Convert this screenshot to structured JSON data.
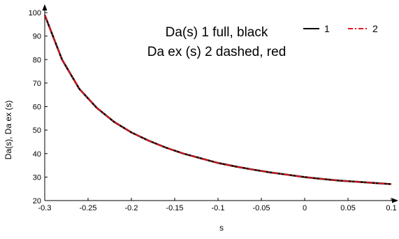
{
  "chart_data": {
    "type": "line",
    "title": "",
    "xlabel": "s",
    "ylabel": "Da(s),  Da ex (s)",
    "xlim": [
      -0.3,
      0.1
    ],
    "ylim": [
      20,
      100
    ],
    "x_ticks": [
      -0.3,
      -0.25,
      -0.2,
      -0.15,
      -0.1,
      -0.05,
      0,
      0.05,
      0.1
    ],
    "x_tick_labels": [
      "-0.3",
      "-0.25",
      "-0.2",
      "-0.15",
      "-0.1",
      "-0.05",
      "0",
      "0.05",
      "0.1"
    ],
    "y_ticks": [
      20,
      30,
      40,
      50,
      60,
      70,
      80,
      90,
      100
    ],
    "y_tick_labels": [
      "20",
      "30",
      "40",
      "50",
      "60",
      "70",
      "80",
      "90",
      "100"
    ],
    "grid": false,
    "legend_position": "top-right",
    "annotations": [
      "Da(s) 1 full, black",
      "Da ex (s) 2 dashed, red"
    ],
    "x": [
      -0.3,
      -0.28,
      -0.26,
      -0.24,
      -0.22,
      -0.2,
      -0.18,
      -0.16,
      -0.14,
      -0.12,
      -0.1,
      -0.08,
      -0.06,
      -0.04,
      -0.02,
      0,
      0.02,
      0.04,
      0.06,
      0.08,
      0.1
    ],
    "series": [
      {
        "name": "1",
        "color": "#000000",
        "style": "solid",
        "values": [
          99,
          80,
          67.5,
          59.5,
          53.5,
          49,
          45.5,
          42.5,
          40,
          38,
          36,
          34.5,
          33.2,
          32,
          31,
          30,
          29.2,
          28.5,
          28,
          27.5,
          27
        ]
      },
      {
        "name": "2",
        "color": "#e8141c",
        "style": "dash-dot",
        "values": [
          99,
          80,
          67.5,
          59.5,
          53.5,
          49,
          45.5,
          42.5,
          40,
          38,
          36,
          34.5,
          33.2,
          32,
          31,
          30,
          29.2,
          28.5,
          28,
          27.5,
          27
        ]
      }
    ]
  }
}
